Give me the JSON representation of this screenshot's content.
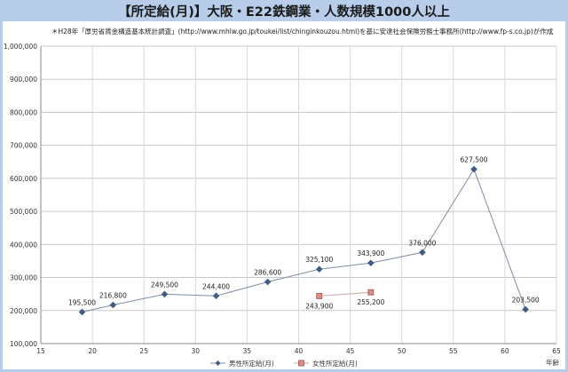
{
  "title": "【所定給(月)】大阪・E22鉄鋼業・人数規模1000人以上",
  "subtitle": "＊H28年「厚労省賃金構造基本統計調査」(http://www.mhlw.go.jp/toukei/list/chinginkouzou.html)を基に安達社会保険労務士事務所(http://www.fp-s.co.jp)が作成",
  "chart_data": {
    "type": "line",
    "title": "【所定給(月)】大阪・E22鉄鋼業・人数規模1000人以上",
    "xlabel": "年齢",
    "ylabel": "",
    "xlim": [
      15,
      65
    ],
    "ylim": [
      100000,
      1000000
    ],
    "x_ticks": [
      "15",
      "20",
      "25",
      "30",
      "35",
      "40",
      "45",
      "50",
      "55",
      "60",
      "65"
    ],
    "y_ticks": [
      "100,000",
      "200,000",
      "300,000",
      "400,000",
      "500,000",
      "600,000",
      "700,000",
      "800,000",
      "900,000",
      "1,000,000"
    ],
    "grid": true,
    "legend_position": "bottom",
    "series": [
      {
        "name": "男性所定給(月)",
        "color": "#7f8ea3",
        "marker": "diamond",
        "marker_color": "#3f5e86",
        "x": [
          19,
          22,
          27,
          32,
          37,
          42,
          47,
          52,
          57,
          62
        ],
        "values": [
          195500,
          216800,
          249500,
          244400,
          286600,
          325100,
          343900,
          376000,
          627500,
          203500
        ],
        "labels": [
          "195,500",
          "216,800",
          "249,500",
          "244,400",
          "286,600",
          "325,100",
          "343,900",
          "376,000",
          "627,500",
          "203,500"
        ]
      },
      {
        "name": "女性所定給(月)",
        "color": "#c9a7a5",
        "marker": "square",
        "marker_color": "#d88e8a",
        "x": [
          42,
          47
        ],
        "values": [
          243900,
          255200
        ],
        "labels": [
          "243,900",
          "255,200"
        ]
      }
    ]
  }
}
